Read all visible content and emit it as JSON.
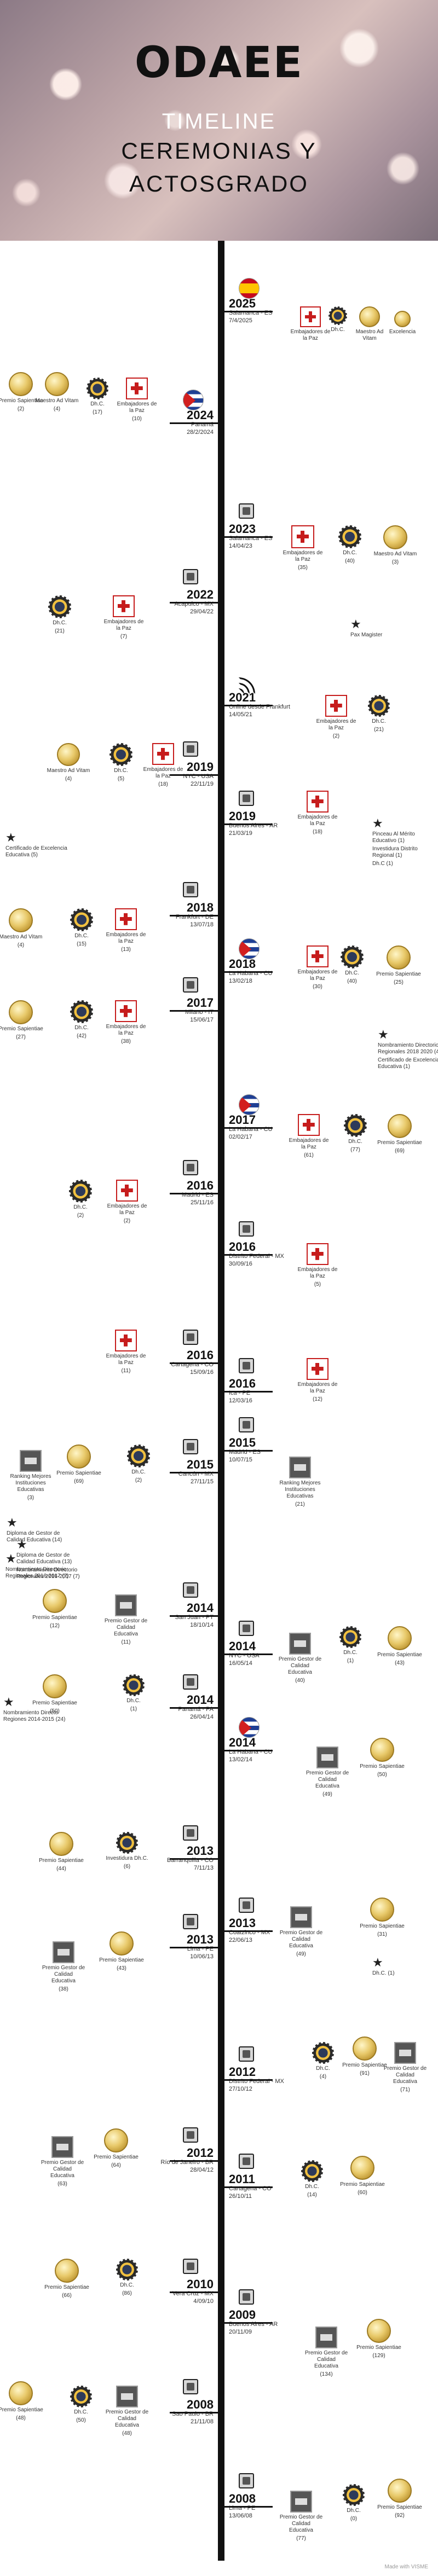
{
  "header": {
    "title": "ODAEE",
    "subtitle": "TIMELINE",
    "line2": "CEREMONIAS Y",
    "line3": "ACTOSGRADO"
  },
  "entries": [
    {
      "year": "2025",
      "loc": "Salamanca - ES",
      "date": "7/4/2025"
    },
    {
      "year": "2024",
      "loc": "Panamá",
      "date": "28/2/2024"
    },
    {
      "year": "2023",
      "loc": "Salamanca - ES",
      "date": "14/04/23"
    },
    {
      "year": "2022",
      "loc": "Acapulco - MX",
      "date": "29/04/22"
    },
    {
      "year": "2021",
      "loc": "Online desde Frankfurt",
      "date": "14/05/21"
    },
    {
      "year": "2019",
      "loc": "NYC - USA",
      "date": "22/11/19"
    },
    {
      "year": "2019",
      "loc": "Buenos Aires - AR",
      "date": "21/03/19"
    },
    {
      "year": "2018",
      "loc": "Frankfurt - DE",
      "date": "13/07/18"
    },
    {
      "year": "2018",
      "loc": "La Habana - CU",
      "date": "13/02/18"
    },
    {
      "year": "2017",
      "loc": "Milano - IT",
      "date": "15/06/17"
    },
    {
      "year": "2017",
      "loc": "La Habana - CU",
      "date": "02/02/17"
    },
    {
      "year": "2016",
      "loc": "Madrid - ES",
      "date": "25/11/16"
    },
    {
      "year": "2016",
      "loc": "Distrito Federal - MX",
      "date": "30/09/16"
    },
    {
      "year": "2016",
      "loc": "Cartagena - CO",
      "date": "15/09/16"
    },
    {
      "year": "2016",
      "loc": "Ica - PE",
      "date": "12/03/16"
    },
    {
      "year": "2015",
      "loc": "Cancún - MX",
      "date": "27/11/15"
    },
    {
      "year": "2015",
      "loc": "Madrid - ES",
      "date": "10/07/15"
    },
    {
      "year": "2014",
      "loc": "San Juan - PT",
      "date": "18/10/14"
    },
    {
      "year": "2014",
      "loc": "NYC - USA",
      "date": "16/05/14"
    },
    {
      "year": "2014",
      "loc": "Panamá - PA",
      "date": "26/04/14"
    },
    {
      "year": "2014",
      "loc": "La Habana - CU",
      "date": "13/02/14"
    },
    {
      "year": "2013",
      "loc": "Barranquilla - CO",
      "date": "7/11/13"
    },
    {
      "year": "2013",
      "loc": "Coatzinco - MX",
      "date": "22/06/13"
    },
    {
      "year": "2013",
      "loc": "Lima - PE",
      "date": "10/06/13"
    },
    {
      "year": "2012",
      "loc": "Distrito Federal - MX",
      "date": "27/10/12"
    },
    {
      "year": "2012",
      "loc": "Río de Janeiro - BR",
      "date": "28/04/12"
    },
    {
      "year": "2011",
      "loc": "Cartagena - CO",
      "date": "26/10/11"
    },
    {
      "year": "2010",
      "loc": "Vera Cruz - MX",
      "date": "4/09/10"
    },
    {
      "year": "2009",
      "loc": "Buenos Aires - AR",
      "date": "20/11/09"
    },
    {
      "year": "2008",
      "loc": "Sao Paulo - BR",
      "date": "21/11/08"
    },
    {
      "year": "2008",
      "loc": "Lima - PE",
      "date": "13/06/08"
    }
  ],
  "awards": [
    "Embajadores de la Paz",
    "Dh.C.",
    "Maestro Ad Vitam",
    "Excelencia",
    "Premio Sapientiae",
    "Maestro Ad Vitam",
    "Dh.C.",
    "Embajadores de la Paz",
    "(2)",
    "(4)",
    "(17)",
    "(10)",
    "Embajadores de la Paz",
    "Dh.C.",
    "Maestro Ad Vitam",
    "(35)",
    "(40)",
    "(3)",
    "Dh.C.",
    "Embajadores de la Paz",
    "(21)",
    "(7)",
    "Pax Magister",
    "Embajadores de la Paz",
    "Dh.C.",
    "(2)",
    "(21)",
    "Maestro Ad Vitam",
    "Dh.C.",
    "Embajadores de la Paz",
    "(4)",
    "(5)",
    "(18)",
    "Certificado de Excelencia Educativa (5)",
    "Embajadores de la Paz",
    "(18)",
    "Pinceau Al Mérito Educativo (1)",
    "Investidura Distrito Regional (1)",
    "Dh.C (1)",
    "Maestro Ad Vitam",
    "Dh.C.",
    "Embajadores de la Paz",
    "(4)",
    "(15)",
    "(13)",
    "Embajadores de la Paz",
    "Dh.C.",
    "Premio Sapientiae",
    "(30)",
    "(40)",
    "(25)",
    "Premio Sapientiae",
    "Dh.C.",
    "Embajadores de la Paz",
    "(27)",
    "(42)",
    "(38)",
    "Nombramiento Directorio Regionales 2018 2020 (4)",
    "Certificado de Excelencia Educativa (1)",
    "Embajadores de la Paz",
    "Dh.C.",
    "Premio Sapientiae",
    "(61)",
    "(77)",
    "(69)",
    "Dh.C.",
    "Embajadores de la Paz",
    "(2)",
    "(2)",
    "Embajadores de la Paz",
    "(5)",
    "Embajadores de la Paz",
    "(11)",
    "Embajadores de la Paz",
    "(12)",
    "Ranking Mejores Instituciones Educativas",
    "(3)",
    "Premio Sapientiae",
    "(69)",
    "Dh.C.",
    "(2)",
    "Ranking Mejores Instituciones Educativas",
    "(21)",
    "Diploma de Gestor de Calidad Educativa (14)",
    "Diploma de Gestor de Calidad Educativa (13)",
    "Nombramiento Directorio Regionales 2016-2017 (7)",
    "Premio Sapientiae",
    "(12)",
    "Premio Gestor de Calidad Educativa",
    "(11)",
    "Premio Gestor de Calidad Educativa",
    "(40)",
    "Dh.C.",
    "(1)",
    "Premio Sapientiae",
    "(43)",
    "Premio Sapientiae",
    "(50)",
    "Dh.C.",
    "(1)",
    "Nombramiento Directo Regiones 2014-2015 (24)",
    "Premio Gestor de Calidad Educativa",
    "(49)",
    "Premio Sapientiae",
    "(50)",
    "Premio Sapientiae",
    "(44)",
    "Investidura Dh.C.",
    "(6)",
    "Premio Gestor de Calidad Educativa",
    "(49)",
    "Premio Sapientiae",
    "(31)",
    "Dh.C. (1)",
    "Premio Gestor de Calidad Educativa",
    "(38)",
    "Premio Sapientiae",
    "(43)",
    "Dh.C.",
    "(4)",
    "Premio Sapientiae",
    "(91)",
    "Premio Gestor de Calidad Educativa",
    "(71)",
    "Premio Gestor de Calidad Educativa",
    "(63)",
    "Premio Sapientiae",
    "(64)",
    "Dh.C.",
    "(14)",
    "Premio Sapientiae",
    "(60)",
    "Premio Sapientiae",
    "(66)",
    "Dh.C.",
    "(86)",
    "Premio Gestor de Calidad Educativa",
    "(134)",
    "Premio Sapientiae",
    "(129)",
    "Premio Sapientiae",
    "(48)",
    "Dh.C.",
    "(50)",
    "Premio Gestor de Calidad Educativa",
    "(48)",
    "Premio Gestor de Calidad Educativa",
    "(77)",
    "Dh.C.",
    "(0)",
    "Premio Sapientiae",
    "(92)"
  ],
  "footer": "Made with VISME"
}
